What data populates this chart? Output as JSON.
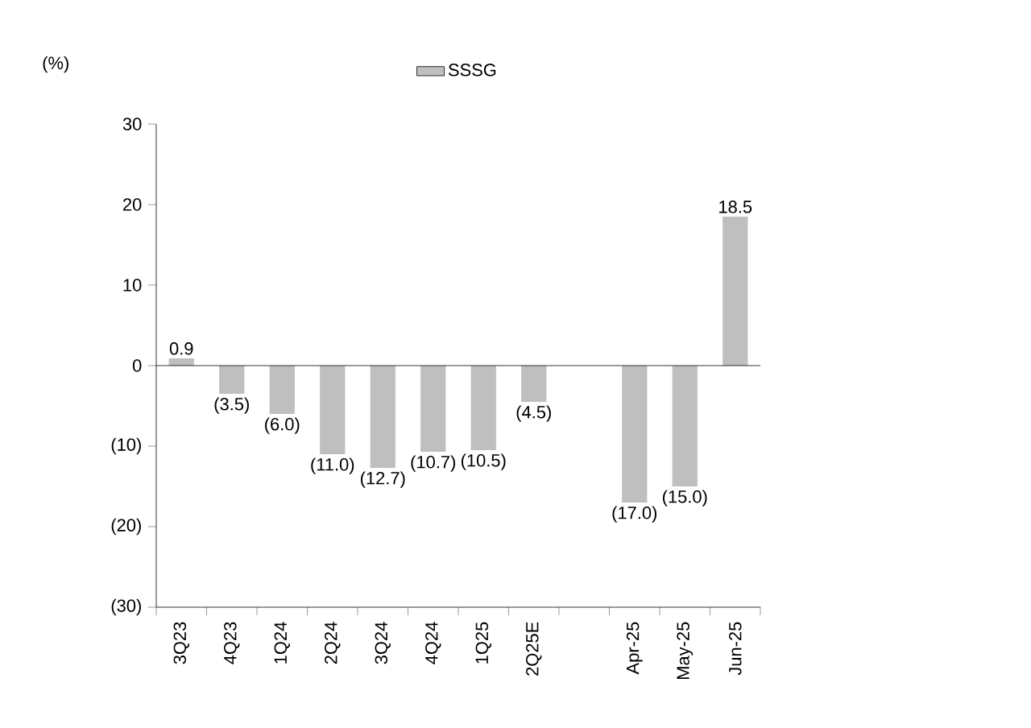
{
  "chart_data": {
    "type": "bar",
    "ylabel": "(%)",
    "categories": [
      "3Q23",
      "4Q23",
      "1Q24",
      "2Q24",
      "3Q24",
      "4Q24",
      "1Q25",
      "2Q25E",
      null,
      "Apr-25",
      "May-25",
      "Jun-25"
    ],
    "series": [
      {
        "name": "SSSG",
        "color": "#bfbfbf",
        "values": [
          0.9,
          -3.5,
          -6.0,
          -11.0,
          -12.7,
          -10.7,
          -10.5,
          -4.5,
          null,
          -17.0,
          -15.0,
          18.5
        ],
        "value_labels": [
          "0.9",
          "(3.5)",
          "(6.0)",
          "(11.0)",
          "(12.7)",
          "(10.7)",
          "(10.5)",
          "(4.5)",
          null,
          "(17.0)",
          "(15.0)",
          "18.5"
        ]
      }
    ],
    "ylim": [
      -30,
      30
    ],
    "yticks": [
      {
        "value": -30,
        "label": "(30)"
      },
      {
        "value": -20,
        "label": "(20)"
      },
      {
        "value": -10,
        "label": "(10)"
      },
      0,
      10,
      20,
      30
    ],
    "ref_lines": [
      {
        "axis": "y",
        "value": 0
      }
    ],
    "legend": "top",
    "grid": false
  }
}
